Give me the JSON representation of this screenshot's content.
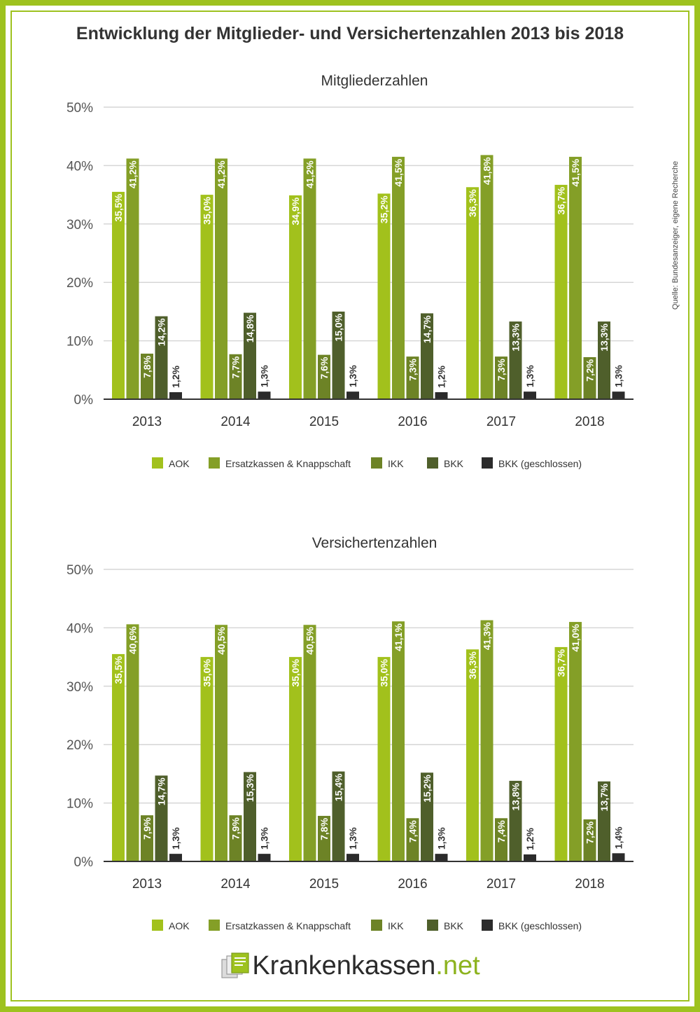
{
  "title": "Entwicklung der Mitglieder- und Versichertenzahlen 2013 bis 2018",
  "source": "Quelle: Bundesanzeiger, eigene Recherche",
  "logo": {
    "main": "Krankenkassen",
    "tld": ".net",
    "icon": "documents-icon"
  },
  "colors": [
    "#a2c11c",
    "#849f27",
    "#6d8326",
    "#4f5f2b",
    "#2b2b2b"
  ],
  "chart_data": [
    {
      "type": "bar",
      "title": "Mitgliederzahlen",
      "categories": [
        "2013",
        "2014",
        "2015",
        "2016",
        "2017",
        "2018"
      ],
      "ylim": [
        0,
        50
      ],
      "yticks": [
        "0%",
        "10%",
        "20%",
        "30%",
        "40%",
        "50%"
      ],
      "grid": true,
      "legend_position": "bottom",
      "series": [
        {
          "name": "AOK",
          "values": [
            35.5,
            35.0,
            34.9,
            35.2,
            36.3,
            36.7
          ],
          "labels": [
            "35,5%",
            "35,0%",
            "34,9%",
            "35,2%",
            "36,3%",
            "36,7%"
          ]
        },
        {
          "name": "Ersatzkassen & Knappschaft",
          "values": [
            41.2,
            41.2,
            41.2,
            41.5,
            41.8,
            41.5
          ],
          "labels": [
            "41,2%",
            "41,2%",
            "41,2%",
            "41,5%",
            "41,8%",
            "41,5%"
          ]
        },
        {
          "name": "IKK",
          "values": [
            7.8,
            7.7,
            7.6,
            7.3,
            7.3,
            7.2
          ],
          "labels": [
            "7,8%",
            "7,7%",
            "7,6%",
            "7,3%",
            "7,3%",
            "7,2%"
          ]
        },
        {
          "name": "BKK",
          "values": [
            14.2,
            14.8,
            15.0,
            14.7,
            13.3,
            13.3
          ],
          "labels": [
            "14,2%",
            "14,8%",
            "15,0%",
            "14,7%",
            "13,3%",
            "13,3%"
          ]
        },
        {
          "name": "BKK (geschlossen)",
          "values": [
            1.2,
            1.3,
            1.3,
            1.2,
            1.3,
            1.3
          ],
          "labels": [
            "1,2%",
            "1,3%",
            "1,3%",
            "1,2%",
            "1,3%",
            "1,3%"
          ]
        }
      ]
    },
    {
      "type": "bar",
      "title": "Versichertenzahlen",
      "categories": [
        "2013",
        "2014",
        "2015",
        "2016",
        "2017",
        "2018"
      ],
      "ylim": [
        0,
        50
      ],
      "yticks": [
        "0%",
        "10%",
        "20%",
        "30%",
        "40%",
        "50%"
      ],
      "grid": true,
      "legend_position": "bottom",
      "series": [
        {
          "name": "AOK",
          "values": [
            35.5,
            35.0,
            35.0,
            35.0,
            36.3,
            36.7
          ],
          "labels": [
            "35,5%",
            "35,0%",
            "35,0%",
            "35,0%",
            "36,3%",
            "36,7%"
          ]
        },
        {
          "name": "Ersatzkassen & Knappschaft",
          "values": [
            40.6,
            40.5,
            40.5,
            41.1,
            41.3,
            41.0
          ],
          "labels": [
            "40,6%",
            "40,5%",
            "40,5%",
            "41,1%",
            "41,3%",
            "41,0%"
          ]
        },
        {
          "name": "IKK",
          "values": [
            7.9,
            7.9,
            7.8,
            7.4,
            7.4,
            7.2
          ],
          "labels": [
            "7,9%",
            "7,9%",
            "7,8%",
            "7,4%",
            "7,4%",
            "7,2%"
          ]
        },
        {
          "name": "BKK",
          "values": [
            14.7,
            15.3,
            15.4,
            15.2,
            13.8,
            13.7
          ],
          "labels": [
            "14,7%",
            "15,3%",
            "15,4%",
            "15,2%",
            "13,8%",
            "13,7%"
          ]
        },
        {
          "name": "BKK (geschlossen)",
          "values": [
            1.3,
            1.3,
            1.3,
            1.3,
            1.2,
            1.4
          ],
          "labels": [
            "1,3%",
            "1,3%",
            "1,3%",
            "1,3%",
            "1,2%",
            "1,4%"
          ]
        }
      ]
    }
  ]
}
